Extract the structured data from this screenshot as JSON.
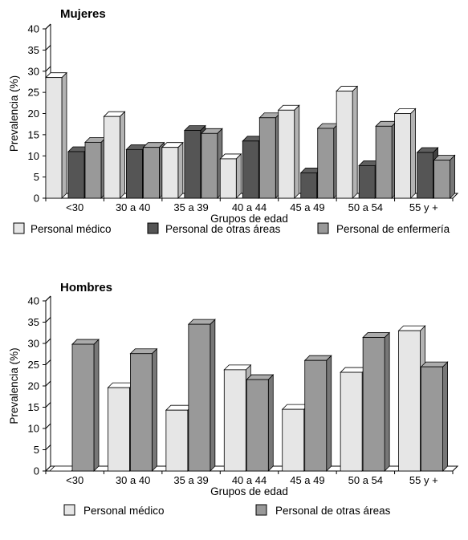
{
  "chart_data": [
    {
      "type": "bar",
      "title": "Mujeres",
      "xlabel": "Grupos de edad",
      "ylabel": "Prevalencia (%)",
      "ylim": [
        0,
        40
      ],
      "yticks": [
        "0",
        "5",
        "10",
        "15",
        "20",
        "25",
        "30",
        "35",
        "40"
      ],
      "categories": [
        "<30",
        "30 a 40",
        "35 a 39",
        "40 a 44",
        "45 a 49",
        "50 a 54",
        "55 y +"
      ],
      "series": [
        {
          "name": "Personal médico",
          "color": "#e6e6e6",
          "values": [
            28.5,
            19.3,
            12.0,
            9.3,
            20.8,
            25.3,
            20.0
          ]
        },
        {
          "name": "Personal de otras áreas",
          "color": "#555555",
          "values": [
            11.0,
            11.5,
            16.0,
            13.5,
            6.0,
            7.7,
            10.8
          ]
        },
        {
          "name": "Personal de enfermería",
          "color": "#999999",
          "values": [
            13.2,
            12.0,
            15.3,
            19.0,
            16.5,
            17.0,
            9.0
          ]
        }
      ],
      "legend": "bottom"
    },
    {
      "type": "bar",
      "title": "Hombres",
      "xlabel": "Grupos de edad",
      "ylabel": "Prevalencia (%)",
      "ylim": [
        0,
        40
      ],
      "yticks": [
        "0",
        "5",
        "10",
        "15",
        "20",
        "25",
        "30",
        "35",
        "40"
      ],
      "categories": [
        "<30",
        "30 a 40",
        "35 a 39",
        "40 a 44",
        "45 a 49",
        "50 a 54",
        "55 y +"
      ],
      "series": [
        {
          "name": "Personal médico",
          "color": "#e6e6e6",
          "values": [
            0,
            19.6,
            14.3,
            23.8,
            14.5,
            23.2,
            33.0
          ]
        },
        {
          "name": "Personal de otras áreas",
          "color": "#999999",
          "values": [
            29.8,
            27.6,
            34.5,
            21.5,
            26.0,
            31.4,
            24.5
          ]
        }
      ],
      "legend": "bottom"
    }
  ]
}
